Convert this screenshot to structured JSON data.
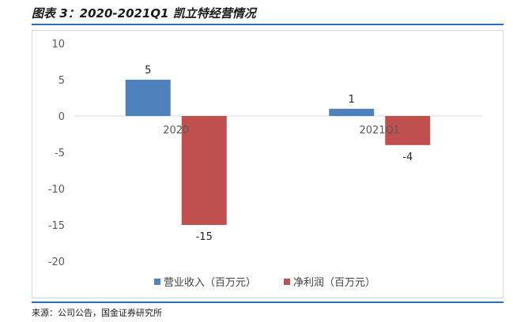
{
  "figure_title": "图表 3：2020-2021Q1 凯立特经营情况",
  "source": "来源：公司公告，国金证券研究所",
  "chart_data": {
    "type": "bar",
    "categories": [
      "2020",
      "2021Q1"
    ],
    "series": [
      {
        "name": "营业收入（百万元）",
        "values": [
          5,
          1
        ],
        "color": "#4f81bd"
      },
      {
        "name": "净利润（百万元）",
        "values": [
          -15,
          -4
        ],
        "color": "#c0504d"
      }
    ],
    "data_labels": [
      [
        "5",
        "1"
      ],
      [
        "-15",
        "-4"
      ]
    ],
    "ylim": [
      -20,
      10
    ],
    "yticks": [
      10,
      5,
      0,
      -5,
      -10,
      -15,
      -20
    ],
    "grid": false,
    "legend": "bottom"
  }
}
